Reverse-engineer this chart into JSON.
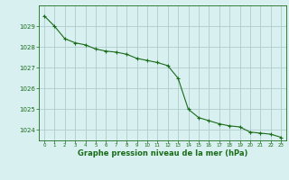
{
  "hours": [
    0,
    1,
    2,
    3,
    4,
    5,
    6,
    7,
    8,
    9,
    10,
    11,
    12,
    13,
    14,
    15,
    16,
    17,
    18,
    19,
    20,
    21,
    22,
    23
  ],
  "pressure": [
    1029.5,
    1029.0,
    1028.4,
    1028.2,
    1028.1,
    1027.9,
    1027.8,
    1027.75,
    1027.65,
    1027.45,
    1027.35,
    1027.25,
    1027.1,
    1026.5,
    1025.0,
    1024.6,
    1024.45,
    1024.3,
    1024.2,
    1024.15,
    1023.9,
    1023.85,
    1023.8,
    1023.65
  ],
  "line_color": "#1a6b1a",
  "marker": "+",
  "bg_color": "#d8f0f0",
  "grid_color": "#b0cccc",
  "xlabel": "Graphe pression niveau de la mer (hPa)",
  "xlabel_color": "#1a6b1a",
  "tick_color": "#1a6b1a",
  "ylim": [
    1023.5,
    1030.0
  ],
  "yticks": [
    1024,
    1025,
    1026,
    1027,
    1028,
    1029
  ],
  "xlim": [
    -0.5,
    23.5
  ],
  "xticks": [
    0,
    1,
    2,
    3,
    4,
    5,
    6,
    7,
    8,
    9,
    10,
    11,
    12,
    13,
    14,
    15,
    16,
    17,
    18,
    19,
    20,
    21,
    22,
    23
  ]
}
